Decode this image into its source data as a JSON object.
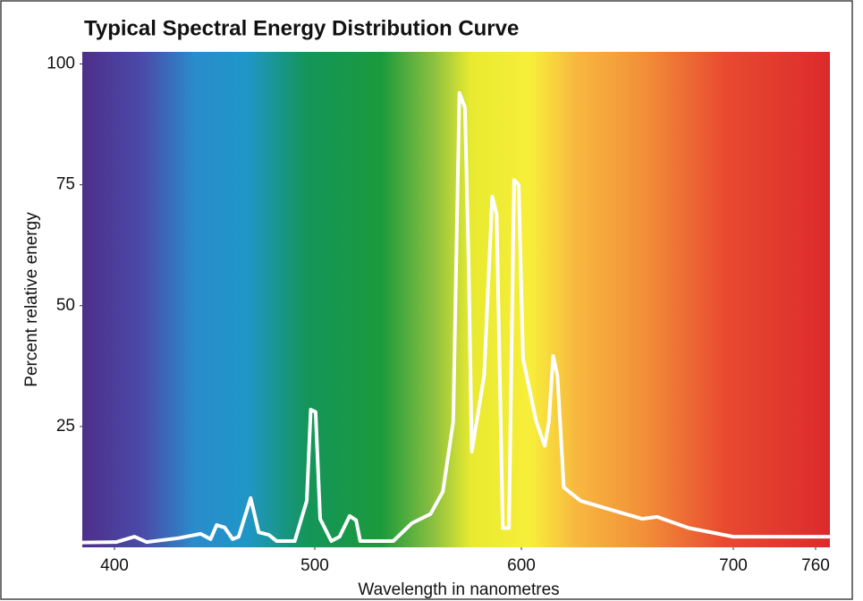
{
  "chart_data": {
    "type": "line",
    "title": "Typical Spectral Energy Distribution Curve",
    "x_label": "Wavelength in nanometres",
    "y_label": "Percent relative energy",
    "x": [
      384,
      401,
      410,
      416,
      432,
      443,
      448,
      451,
      455,
      459,
      462,
      468,
      472,
      477,
      481,
      490,
      496,
      498,
      500.4,
      502.6,
      508,
      512,
      516.9,
      520,
      522,
      538,
      547,
      556,
      562,
      567,
      570,
      572.7,
      574.5,
      576,
      582,
      585.9,
      588,
      591,
      594,
      596.5,
      598.7,
      600.8,
      607,
      611,
      613,
      615,
      617,
      620,
      628,
      649,
      657,
      664,
      679,
      700,
      733,
      770
    ],
    "series": [
      {
        "name": "Relative energy",
        "color": "#ffffff",
        "values": [
          1,
          1.1,
          2.2,
          1.1,
          1.9,
          2.8,
          1.7,
          4.6,
          4.1,
          1.7,
          2.2,
          10.2,
          3.1,
          2.6,
          1.3,
          1.3,
          9.6,
          28.5,
          28,
          5.9,
          1.3,
          2.2,
          6.5,
          5.6,
          1.3,
          1.3,
          5,
          6.9,
          11.5,
          26,
          94,
          91,
          58,
          19.8,
          35.6,
          72.6,
          69,
          4,
          4,
          76,
          75,
          39,
          26,
          21,
          26,
          39.6,
          35.6,
          12.4,
          9.6,
          6.9,
          5.9,
          6.3,
          4,
          2.2,
          2.2,
          2.2
        ]
      }
    ],
    "xlim": [
      384,
      770
    ],
    "xticks": [
      400,
      500,
      600,
      700,
      760
    ],
    "ylim": [
      0,
      102.5
    ],
    "yticks": [
      25,
      50,
      75,
      100
    ]
  }
}
